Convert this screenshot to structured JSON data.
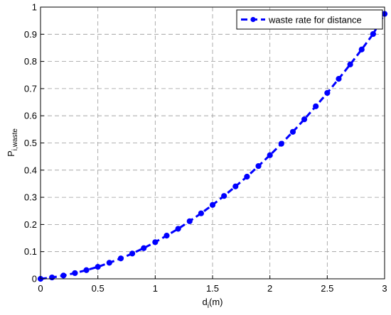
{
  "chart_data": {
    "type": "line",
    "xlabel": {
      "text": "d",
      "subscript": "i",
      "suffix": "(m)"
    },
    "ylabel": {
      "text": "P",
      "subscript": "i,waste"
    },
    "x": [
      0,
      0.1,
      0.2,
      0.3,
      0.4,
      0.5,
      0.6,
      0.7,
      0.8,
      0.9,
      1.0,
      1.1,
      1.2,
      1.3,
      1.4,
      1.5,
      1.6,
      1.7,
      1.8,
      1.9,
      2.0,
      2.1,
      2.2,
      2.3,
      2.4,
      2.5,
      2.6,
      2.7,
      2.8,
      2.9,
      3.0
    ],
    "series": [
      {
        "name": "waste rate for distance",
        "color": "#0000ff",
        "values": [
          0,
          0.005,
          0.012,
          0.021,
          0.032,
          0.044,
          0.059,
          0.075,
          0.093,
          0.113,
          0.135,
          0.159,
          0.184,
          0.212,
          0.241,
          0.272,
          0.305,
          0.34,
          0.376,
          0.415,
          0.455,
          0.497,
          0.541,
          0.587,
          0.635,
          0.684,
          0.736,
          0.789,
          0.844,
          0.901,
          0.975
        ]
      }
    ],
    "xlim": [
      0,
      3
    ],
    "xticks": [
      0,
      0.5,
      1,
      1.5,
      2,
      2.5,
      3
    ],
    "ylim": [
      0,
      1
    ],
    "yticks": [
      0,
      0.1,
      0.2,
      0.3,
      0.4,
      0.5,
      0.6,
      0.7,
      0.8,
      0.9,
      1
    ],
    "grid": true,
    "legend": "upper right"
  }
}
